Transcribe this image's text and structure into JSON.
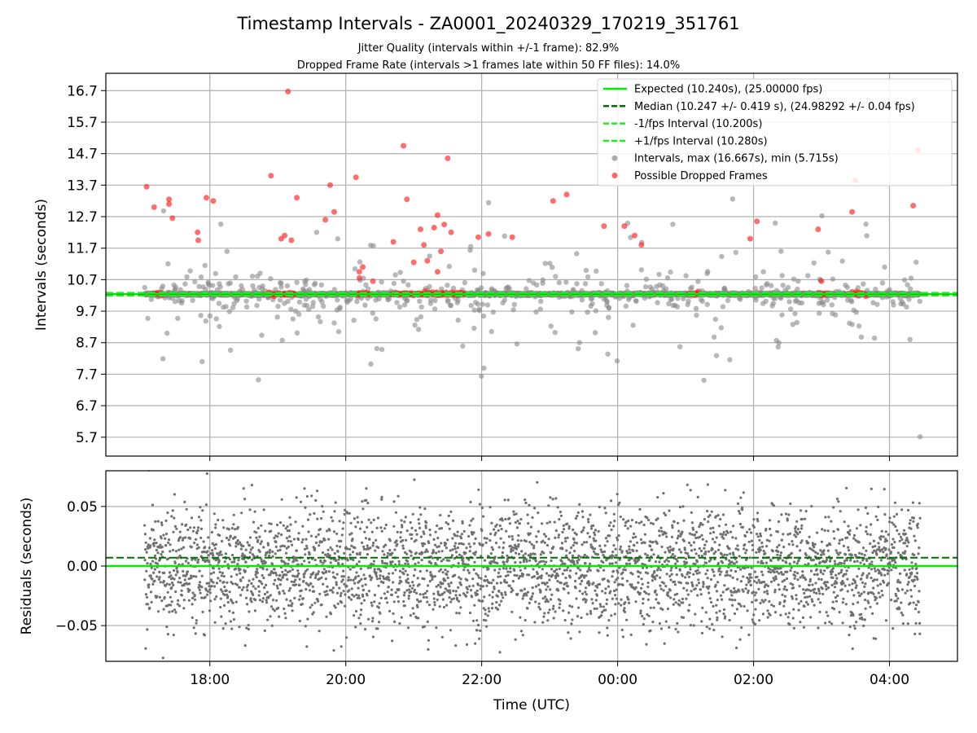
{
  "title": "Timestamp Intervals - ZA0001_20240329_170219_351761",
  "subtitle_1": "Jitter Quality (intervals within +/-1 frame): 82.9%",
  "subtitle_2": "Dropped Frame Rate (intervals >1 frames late within 50 FF files): 14.0%",
  "colors": {
    "expected": "#00ee00",
    "median": "#007000",
    "interval_lines": "#22ee22",
    "intervals": "#888888",
    "dropped": "#ff2020",
    "residuals": "#707070"
  },
  "chart_data": [
    {
      "type": "scatter",
      "ylabel": "Intervals (seconds)",
      "ylim": [
        5.1,
        17.25
      ],
      "yticks": [
        "5.7",
        "6.7",
        "7.7",
        "8.7",
        "9.7",
        "10.7",
        "11.7",
        "12.7",
        "13.7",
        "14.7",
        "15.7",
        "16.7"
      ],
      "xlim_hours": [
        16.47,
        29.0
      ],
      "xticks": [
        "18:00",
        "20:00",
        "22:00",
        "00:00",
        "02:00",
        "04:00"
      ],
      "grid": true,
      "legend_position": "top-right",
      "legend": [
        "Expected (10.240s), (25.00000 fps)",
        "Median (10.247 +/- 0.419 s), (24.98292 +/- 0.04 fps)",
        "-1/fps Interval (10.200s)",
        "+1/fps Interval (10.280s)",
        "Intervals, max (16.667s), min (5.715s)",
        "Possible Dropped Frames"
      ],
      "lines": {
        "expected": 10.24,
        "median": 10.247,
        "minus_1fps": 10.2,
        "plus_1fps": 10.28
      },
      "time_range_hours": [
        17.04,
        28.45
      ],
      "series": [
        {
          "name": "Intervals, max (16.667s), min (5.715s)",
          "max": 16.667,
          "min": 5.715
        },
        {
          "name": "Possible Dropped Frames",
          "x_hours": [
            17.18,
            17.4,
            17.45,
            17.4,
            18.9,
            19.05,
            19.1,
            19.15,
            19.28,
            19.7,
            19.77,
            19.83,
            19.2,
            20.15,
            20.2,
            20.25,
            20.2,
            20.7,
            20.85,
            20.9,
            21.0,
            21.1,
            21.15,
            21.2,
            21.3,
            21.35,
            21.4,
            21.45,
            21.5,
            21.55,
            21.35,
            20.4,
            21.95,
            22.1,
            22.45,
            23.05,
            23.25,
            23.8,
            24.1,
            24.25,
            24.35,
            25.95,
            26.05,
            26.95,
            27.0,
            27.45,
            27.5,
            28.35,
            28.42,
            17.07,
            17.82,
            17.83,
            17.95,
            18.05
          ],
          "y": [
            13.0,
            13.1,
            12.65,
            13.25,
            14.0,
            12.0,
            12.1,
            16.67,
            13.3,
            12.6,
            13.7,
            12.85,
            11.95,
            13.95,
            10.75,
            11.1,
            10.95,
            11.9,
            14.95,
            13.25,
            11.25,
            12.3,
            11.8,
            11.3,
            12.35,
            12.75,
            11.6,
            12.45,
            14.55,
            12.2,
            10.95,
            10.65,
            12.05,
            12.15,
            12.05,
            13.2,
            13.4,
            12.4,
            12.4,
            12.1,
            11.8,
            12.0,
            12.55,
            12.3,
            10.65,
            12.85,
            13.85,
            13.05,
            14.8,
            13.65,
            12.2,
            11.95,
            13.3,
            13.2
          ]
        }
      ]
    },
    {
      "type": "scatter",
      "ylabel": "Residuals (seconds)",
      "xlabel": "Time (UTC)",
      "ylim": [
        -0.08,
        0.08
      ],
      "yticks": [
        "−0.05",
        "0.00",
        "0.05"
      ],
      "xticks": [
        "18:00",
        "20:00",
        "22:00",
        "00:00",
        "02:00",
        "04:00"
      ],
      "grid": true,
      "lines": {
        "zero": 0.0,
        "median_offset": 0.007
      },
      "residual_spread_seconds": 0.03
    }
  ]
}
